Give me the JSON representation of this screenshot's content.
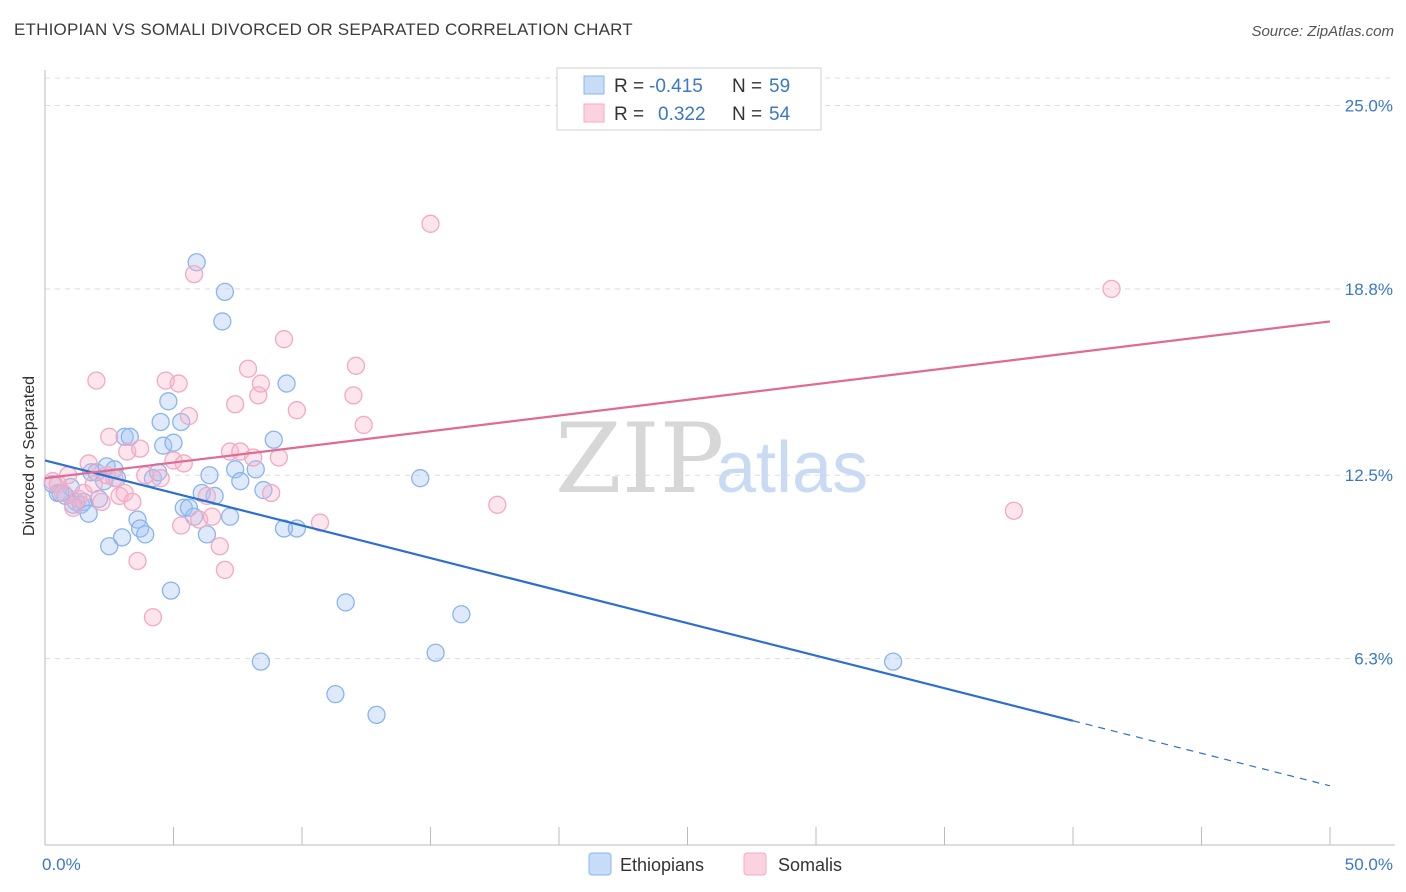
{
  "header": {
    "title": "ETHIOPIAN VS SOMALI DIVORCED OR SEPARATED CORRELATION CHART",
    "source": "Source: ZipAtlas.com"
  },
  "legend": {
    "rows": [
      {
        "r_label": "R =",
        "r_value": "-0.415",
        "n_label": "N =",
        "n_value": "59",
        "color": "#8ab4f0"
      },
      {
        "r_label": "R =",
        "r_value": "0.322",
        "n_label": "N =",
        "n_value": "54",
        "color": "#f4a8c2"
      }
    ]
  },
  "watermark": {
    "zip": "ZIP",
    "atlas": "atlas"
  },
  "chart_data": {
    "type": "scatter",
    "title": "ETHIOPIAN VS SOMALI DIVORCED OR SEPARATED CORRELATION CHART",
    "ylabel": "Divorced or Separated",
    "xlabel": "",
    "xlim": [
      0,
      50
    ],
    "ylim": [
      0,
      26.2
    ],
    "x_tick_labels": [
      {
        "value": 0,
        "label": "0.0%"
      },
      {
        "value": 50,
        "label": "50.0%"
      }
    ],
    "y_tick_labels": [
      {
        "value": 6.3,
        "label": "6.3%"
      },
      {
        "value": 12.5,
        "label": "12.5%"
      },
      {
        "value": 18.8,
        "label": "18.8%"
      },
      {
        "value": 25.0,
        "label": "25.0%"
      }
    ],
    "grid": true,
    "series": [
      {
        "name": "Ethiopians",
        "color": "#8ab4f0",
        "line_color": "#2d6fd1",
        "trend": {
          "x0": 0,
          "y0": 13.0,
          "x1": 40,
          "y1": 4.2,
          "dash_to_x": 50,
          "dash_to_y": 2.0
        },
        "points": [
          [
            0.3,
            12.2
          ],
          [
            0.5,
            11.9
          ],
          [
            0.8,
            11.8
          ],
          [
            1.0,
            12.1
          ],
          [
            1.2,
            11.6
          ],
          [
            1.4,
            11.5
          ],
          [
            1.5,
            11.6
          ],
          [
            1.7,
            11.2
          ],
          [
            1.8,
            12.6
          ],
          [
            2.0,
            12.6
          ],
          [
            2.1,
            11.7
          ],
          [
            2.3,
            12.3
          ],
          [
            2.4,
            12.8
          ],
          [
            2.5,
            10.1
          ],
          [
            2.7,
            12.7
          ],
          [
            2.8,
            12.4
          ],
          [
            3.0,
            10.4
          ],
          [
            3.1,
            13.8
          ],
          [
            3.3,
            13.8
          ],
          [
            3.6,
            11.0
          ],
          [
            3.7,
            10.7
          ],
          [
            3.9,
            10.5
          ],
          [
            4.2,
            12.4
          ],
          [
            4.4,
            12.6
          ],
          [
            4.5,
            14.3
          ],
          [
            4.6,
            13.5
          ],
          [
            4.8,
            15.0
          ],
          [
            4.9,
            8.6
          ],
          [
            5.0,
            13.6
          ],
          [
            5.3,
            14.3
          ],
          [
            5.4,
            11.4
          ],
          [
            5.6,
            11.4
          ],
          [
            5.8,
            11.1
          ],
          [
            5.9,
            19.7
          ],
          [
            6.1,
            11.9
          ],
          [
            6.3,
            10.5
          ],
          [
            6.4,
            12.5
          ],
          [
            6.6,
            11.8
          ],
          [
            6.9,
            17.7
          ],
          [
            7.0,
            18.7
          ],
          [
            7.2,
            11.1
          ],
          [
            7.4,
            12.7
          ],
          [
            7.6,
            12.3
          ],
          [
            8.2,
            12.7
          ],
          [
            8.4,
            6.2
          ],
          [
            8.5,
            12.0
          ],
          [
            8.9,
            13.7
          ],
          [
            9.3,
            10.7
          ],
          [
            9.4,
            15.6
          ],
          [
            9.8,
            10.7
          ],
          [
            11.3,
            5.1
          ],
          [
            11.7,
            8.2
          ],
          [
            12.9,
            4.4
          ],
          [
            14.6,
            12.4
          ],
          [
            15.2,
            6.5
          ],
          [
            16.2,
            7.8
          ],
          [
            33.0,
            6.2
          ],
          [
            0.6,
            11.9
          ],
          [
            1.1,
            11.5
          ]
        ]
      },
      {
        "name": "Somalis",
        "color": "#f4a8c2",
        "line_color": "#e06a92",
        "trend": {
          "x0": 0,
          "y0": 12.4,
          "x1": 50,
          "y1": 17.7
        },
        "points": [
          [
            0.3,
            12.3
          ],
          [
            0.5,
            12.2
          ],
          [
            0.7,
            11.9
          ],
          [
            0.9,
            12.5
          ],
          [
            1.1,
            11.4
          ],
          [
            1.3,
            11.7
          ],
          [
            1.5,
            11.9
          ],
          [
            1.7,
            12.9
          ],
          [
            1.9,
            12.2
          ],
          [
            2.0,
            15.7
          ],
          [
            2.2,
            11.6
          ],
          [
            2.4,
            12.5
          ],
          [
            2.5,
            13.8
          ],
          [
            2.7,
            12.4
          ],
          [
            2.9,
            11.8
          ],
          [
            3.1,
            11.9
          ],
          [
            3.2,
            13.3
          ],
          [
            3.4,
            11.6
          ],
          [
            3.6,
            9.6
          ],
          [
            3.7,
            13.4
          ],
          [
            3.9,
            12.5
          ],
          [
            4.2,
            7.7
          ],
          [
            4.5,
            12.4
          ],
          [
            4.7,
            15.7
          ],
          [
            5.0,
            13.0
          ],
          [
            5.2,
            15.6
          ],
          [
            5.3,
            10.8
          ],
          [
            5.4,
            12.9
          ],
          [
            5.6,
            14.5
          ],
          [
            5.8,
            19.3
          ],
          [
            6.0,
            11.0
          ],
          [
            6.3,
            11.8
          ],
          [
            6.5,
            11.1
          ],
          [
            6.8,
            10.1
          ],
          [
            7.0,
            9.3
          ],
          [
            7.2,
            13.3
          ],
          [
            7.4,
            14.9
          ],
          [
            7.6,
            13.3
          ],
          [
            7.9,
            16.1
          ],
          [
            8.1,
            13.1
          ],
          [
            8.3,
            15.2
          ],
          [
            8.4,
            15.6
          ],
          [
            8.8,
            11.9
          ],
          [
            9.1,
            13.1
          ],
          [
            9.3,
            17.1
          ],
          [
            9.8,
            14.7
          ],
          [
            10.7,
            10.9
          ],
          [
            12.0,
            15.2
          ],
          [
            12.1,
            16.2
          ],
          [
            12.4,
            14.2
          ],
          [
            15.0,
            21.0
          ],
          [
            17.6,
            11.5
          ],
          [
            37.7,
            11.3
          ],
          [
            41.5,
            18.8
          ]
        ]
      }
    ]
  }
}
